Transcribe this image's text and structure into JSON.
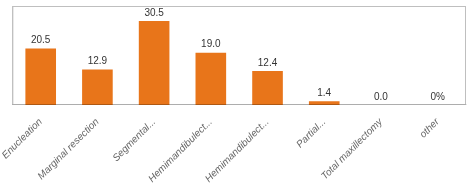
{
  "chart_data": {
    "type": "bar",
    "categories": [
      "Enucleation",
      "Marginal resection",
      "Segmental...",
      "Hemimandibulect...",
      "Hemimandibulect...",
      "Partial...",
      "Total maxillectomy",
      "other"
    ],
    "values": [
      20.5,
      12.9,
      30.5,
      19.0,
      12.4,
      1.4,
      0.0,
      0.0
    ],
    "value_labels": [
      "20.5",
      "12.9",
      "30.5",
      "19.0",
      "12.4",
      "1.4",
      "0.0",
      "0%"
    ],
    "data_labels": true,
    "color": "#E8751A",
    "ylim": [
      0,
      36
    ],
    "grid": false,
    "tick_labels": "x"
  }
}
